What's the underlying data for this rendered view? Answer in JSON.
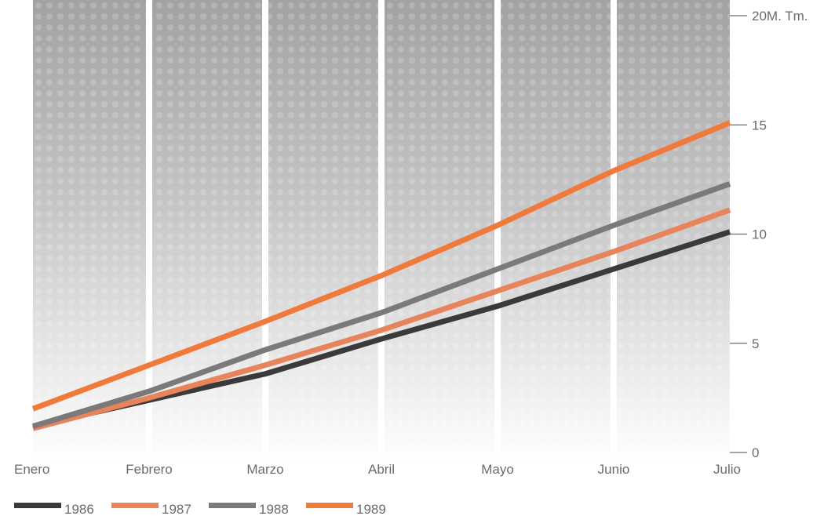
{
  "chart_data": {
    "type": "line",
    "categories": [
      "Enero",
      "Febrero",
      "Marzo",
      "Abril",
      "Mayo",
      "Junio",
      "Julio"
    ],
    "ylim": [
      0,
      20
    ],
    "yticks": [
      {
        "value": 0,
        "label": "0"
      },
      {
        "value": 5,
        "label": "5"
      },
      {
        "value": 10,
        "label": "10"
      },
      {
        "value": 15,
        "label": "15"
      },
      {
        "value": 20,
        "label": "20M. Tm."
      }
    ],
    "series": [
      {
        "name": "1986",
        "color": "#3a3a3a",
        "values": [
          1.2,
          2.4,
          3.6,
          5.2,
          6.7,
          8.4,
          10.1
        ]
      },
      {
        "name": "1987",
        "color": "#e8845c",
        "values": [
          1.1,
          2.5,
          4.0,
          5.6,
          7.4,
          9.2,
          11.1
        ]
      },
      {
        "name": "1988",
        "color": "#7a7a7a",
        "values": [
          1.2,
          2.8,
          4.7,
          6.4,
          8.4,
          10.4,
          12.3
        ]
      },
      {
        "name": "1989",
        "color": "#f07a3c",
        "values": [
          2.0,
          4.0,
          6.0,
          8.1,
          10.4,
          12.9,
          15.1
        ]
      }
    ],
    "legend_position": "bottom-left",
    "grid": false
  }
}
